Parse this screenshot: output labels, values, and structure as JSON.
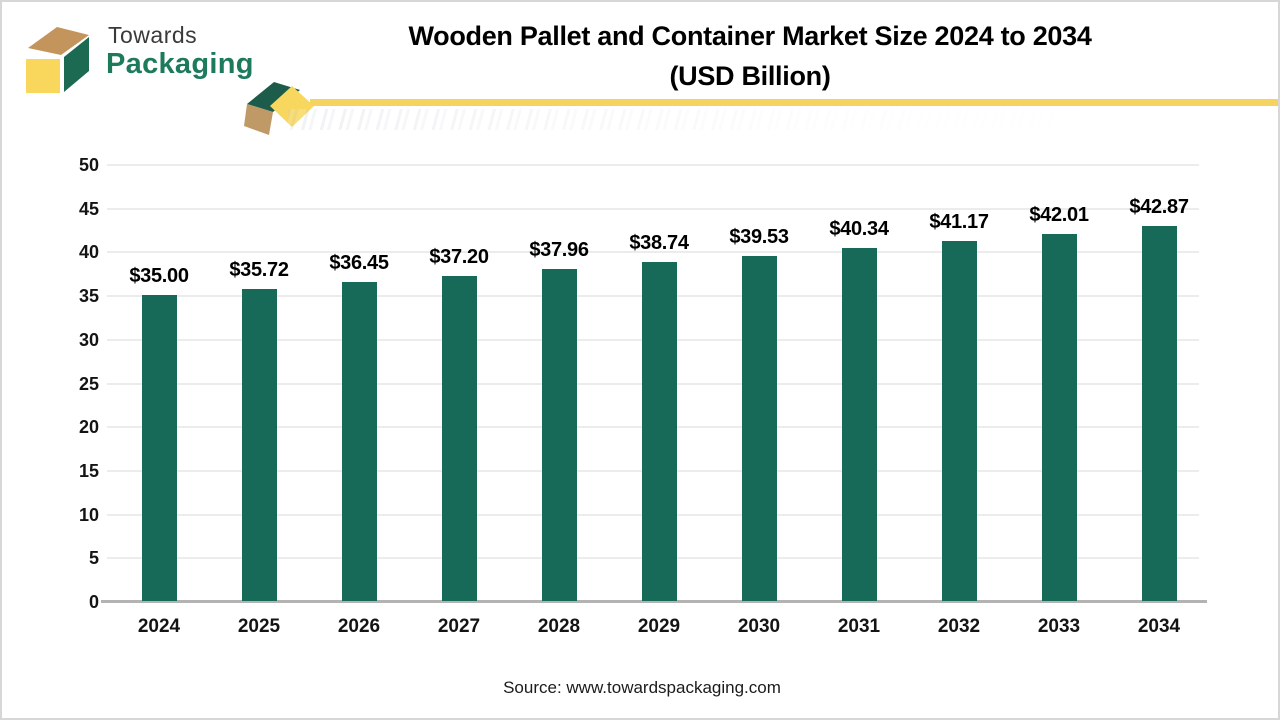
{
  "header": {
    "brand_top": "Towards",
    "brand_bottom": "Packaging",
    "title_line1": "Wooden Pallet and Container Market Size 2024 to 2034",
    "title_line2": "(USD Billion)"
  },
  "footer": {
    "source": "Source: www.towardspackaging.com"
  },
  "chart_data": {
    "type": "bar",
    "title": "Wooden Pallet and Container Market Size 2024 to 2034 (USD Billion)",
    "categories": [
      "2024",
      "2025",
      "2026",
      "2027",
      "2028",
      "2029",
      "2030",
      "2031",
      "2032",
      "2033",
      "2034"
    ],
    "values": [
      35.0,
      35.72,
      36.45,
      37.2,
      37.96,
      38.74,
      39.53,
      40.34,
      41.17,
      42.01,
      42.87
    ],
    "data_labels": [
      "$35.00",
      "$35.72",
      "$36.45",
      "$37.20",
      "$37.96",
      "$38.74",
      "$39.53",
      "$40.34",
      "$41.17",
      "$42.01",
      "$42.87"
    ],
    "xlabel": "",
    "ylabel": "",
    "ylim": [
      0,
      50
    ],
    "yticks": [
      0,
      5,
      10,
      15,
      20,
      25,
      30,
      35,
      40,
      45,
      50
    ],
    "grid": "horizontal",
    "legend": "none",
    "bar_color": "#186a58"
  },
  "colors": {
    "bar": "#186a58",
    "accent_yellow": "#f6d35e",
    "logo_top_tan": "#c3955c",
    "logo_right_green": "#1d6a52",
    "logo_front_yellow": "#f9d65c",
    "brand_text_green": "#1e7a5c",
    "divider_green": "#1d5c4a",
    "divider_tan": "#c09a66",
    "divider_yellow": "#f7d75e",
    "axis_line": "#b3b3b3",
    "gridline": "#ececec"
  }
}
